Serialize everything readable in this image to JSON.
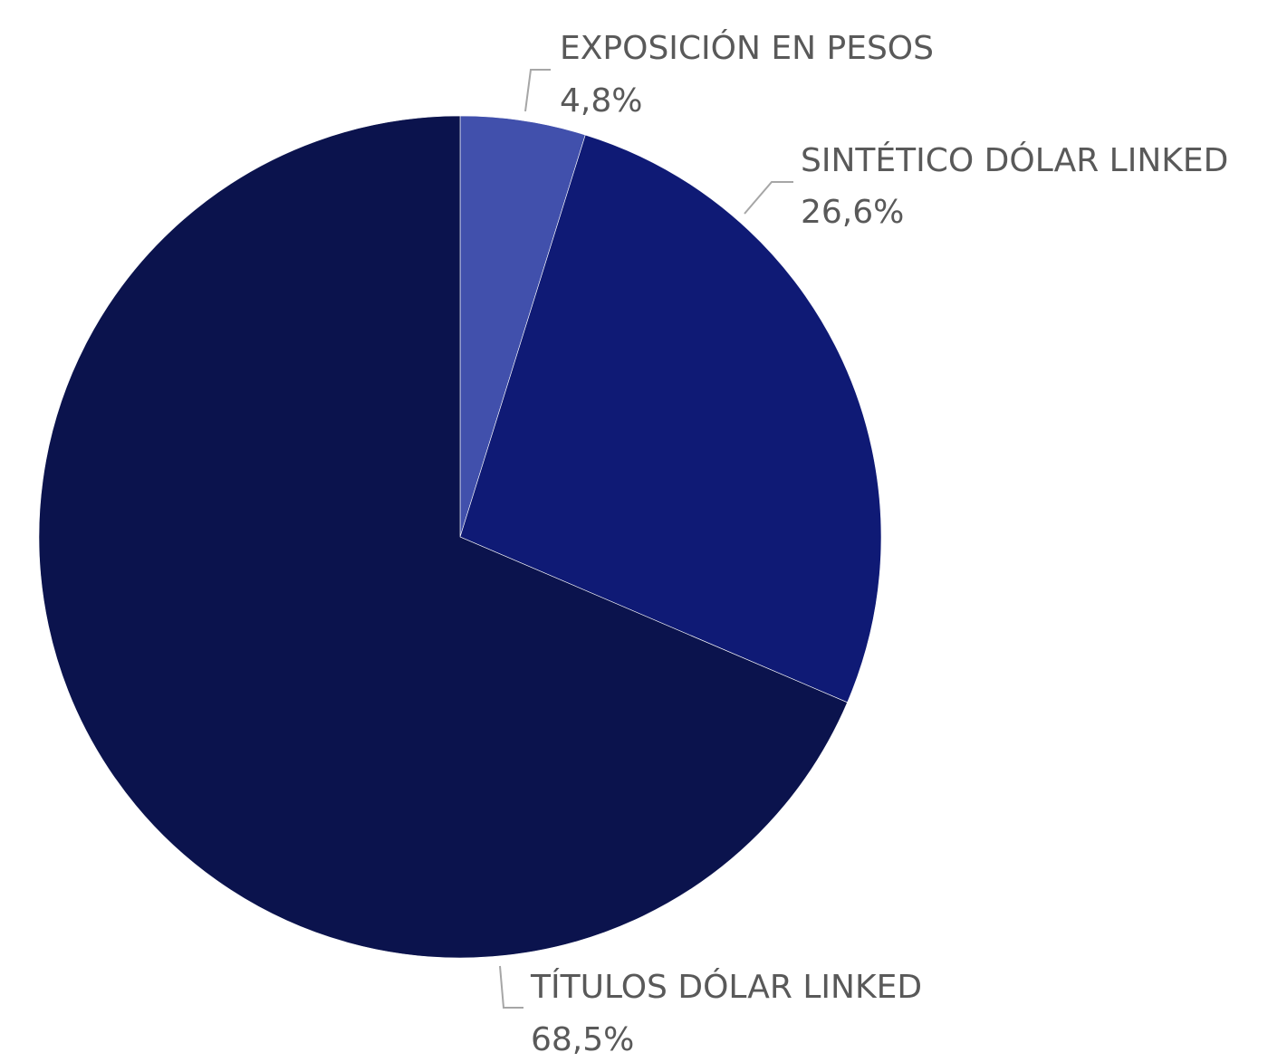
{
  "chart_data": {
    "type": "pie",
    "title": "",
    "start_angle_deg": 0,
    "direction": "clockwise",
    "legend": "none",
    "slices": [
      {
        "label": "EXPOSICIÓN EN PESOS",
        "value": 4.8,
        "value_label": "4,8%",
        "color": "#4150AC"
      },
      {
        "label": "SINTÉTICO DÓLAR LINKED",
        "value": 26.6,
        "value_label": "26,6%",
        "color": "#0F1A75"
      },
      {
        "label": "TÍTULOS DÓLAR LINKED",
        "value": 68.5,
        "value_label": "68,5%",
        "color": "#0B134D"
      }
    ]
  },
  "style": {
    "label_color": "#595959",
    "leader_color": "#A6A6A6",
    "slice_border_color": "#ffffff"
  }
}
